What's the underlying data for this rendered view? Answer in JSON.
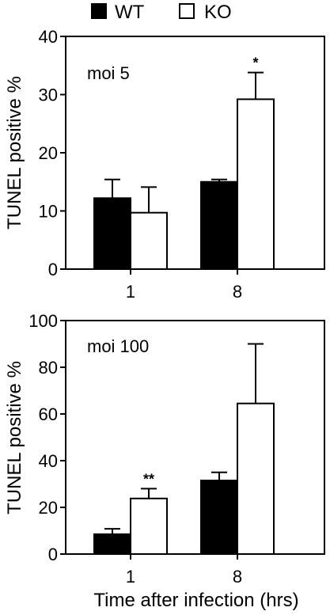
{
  "legend": [
    {
      "label": "WT",
      "color": "#000000"
    },
    {
      "label": "KO",
      "color": "#ffffff"
    }
  ],
  "xlabel": "Time after infection (hrs)",
  "chart_data": [
    {
      "type": "bar",
      "panel_label": "moi 5",
      "ylabel": "TUNEL positive %",
      "ylim": [
        0,
        40
      ],
      "yticks": [
        0,
        10,
        20,
        30,
        40
      ],
      "categories": [
        "1",
        "8"
      ],
      "series": [
        {
          "name": "WT",
          "color": "#000000",
          "values": [
            12.2,
            15.0
          ],
          "errors": [
            3.2,
            0.4
          ]
        },
        {
          "name": "KO",
          "color": "#ffffff",
          "values": [
            9.7,
            29.2
          ],
          "errors": [
            4.4,
            4.6
          ]
        }
      ],
      "annotations": [
        {
          "category": "8",
          "series": "KO",
          "text": "*"
        }
      ]
    },
    {
      "type": "bar",
      "panel_label": "moi 100",
      "ylabel": "TUNEL positive %",
      "ylim": [
        0,
        100
      ],
      "yticks": [
        0,
        20,
        40,
        60,
        80,
        100
      ],
      "categories": [
        "1",
        "8"
      ],
      "series": [
        {
          "name": "WT",
          "color": "#000000",
          "values": [
            8.5,
            31.5
          ],
          "errors": [
            2.3,
            3.5
          ]
        },
        {
          "name": "KO",
          "color": "#ffffff",
          "values": [
            23.8,
            64.5
          ],
          "errors": [
            4.2,
            25.5
          ]
        }
      ],
      "annotations": [
        {
          "category": "1",
          "series": "KO",
          "text": "**"
        }
      ]
    }
  ]
}
